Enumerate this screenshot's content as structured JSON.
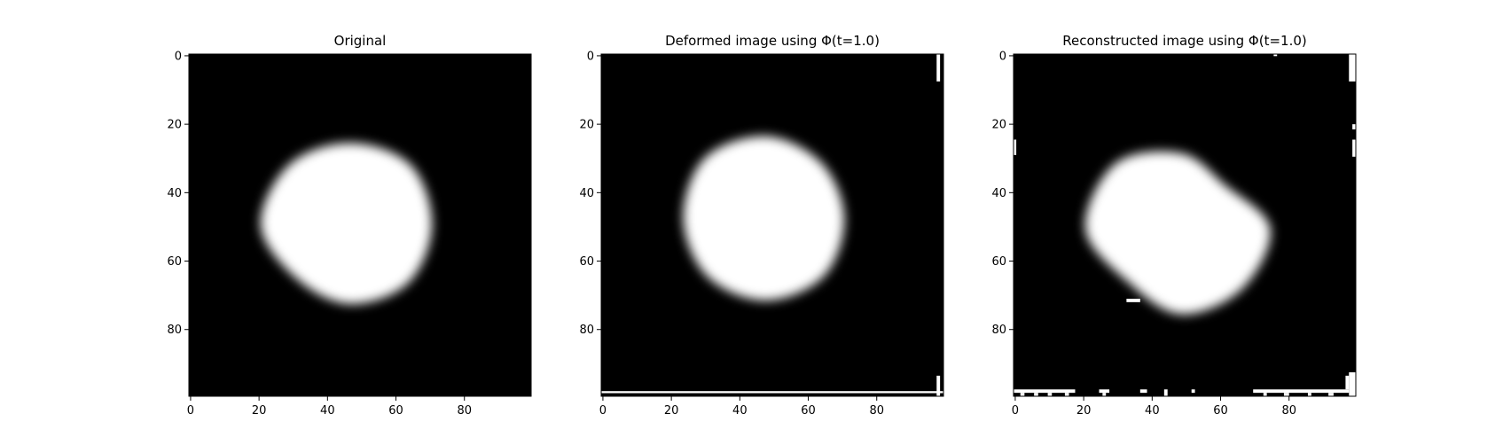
{
  "figure": {
    "background": "#ffffff"
  },
  "chart_data": [
    {
      "type": "heatmap",
      "title": "Original",
      "xlabel": "",
      "ylabel": "",
      "xlim": [
        0,
        100
      ],
      "ylim": [
        100,
        0
      ],
      "xticks": [
        0,
        20,
        40,
        60,
        80
      ],
      "yticks": [
        0,
        20,
        40,
        60,
        80
      ],
      "colormap": [
        "#000000",
        "#ffffff"
      ],
      "blob": {
        "cx": 47,
        "cy": 50,
        "radii": [
          24,
          25,
          24,
          24,
          23,
          22,
          26,
          25
        ]
      },
      "artifacts": []
    },
    {
      "type": "heatmap",
      "title": "Deformed image using Φ(t=1.0)",
      "xlabel": "",
      "ylabel": "",
      "xlim": [
        0,
        100
      ],
      "ylim": [
        100,
        0
      ],
      "xticks": [
        0,
        20,
        40,
        60,
        80
      ],
      "yticks": [
        0,
        20,
        40,
        60,
        80
      ],
      "colormap": [
        "#000000",
        "#ffffff"
      ],
      "blob": {
        "cx": 48,
        "cy": 48,
        "radii": [
          24,
          23,
          23,
          24,
          24,
          24,
          24,
          25
        ]
      },
      "artifacts": [
        {
          "x": 98,
          "y": 0,
          "w": 1,
          "h": 8
        },
        {
          "x": 98,
          "y": 94,
          "w": 1,
          "h": 6
        },
        {
          "x": 0,
          "y": 98.5,
          "w": 100,
          "h": 0.6
        }
      ]
    },
    {
      "type": "heatmap",
      "title": "Reconstructed image using Φ(t=1.0)",
      "xlabel": "",
      "ylabel": "",
      "xlim": [
        0,
        100
      ],
      "ylim": [
        100,
        0
      ],
      "xticks": [
        0,
        20,
        40,
        60,
        80
      ],
      "yticks": [
        0,
        20,
        40,
        60,
        80
      ],
      "colormap": [
        "#000000",
        "#ffffff"
      ],
      "blob": {
        "cx": 49,
        "cy": 51,
        "radii": [
          22,
          18,
          26,
          25,
          25,
          22,
          28,
          27
        ]
      },
      "artifacts": [
        {
          "x": 98,
          "y": 0,
          "w": 2,
          "h": 8
        },
        {
          "x": 76,
          "y": 0,
          "w": 1,
          "h": 0.6
        },
        {
          "x": 99,
          "y": 20.5,
          "w": 1,
          "h": 1.5
        },
        {
          "x": 99,
          "y": 25,
          "w": 1,
          "h": 5
        },
        {
          "x": 0,
          "y": 25,
          "w": 0.8,
          "h": 4.5
        },
        {
          "x": 0,
          "y": 98,
          "w": 18,
          "h": 1
        },
        {
          "x": 2,
          "y": 99,
          "w": 1.2,
          "h": 1
        },
        {
          "x": 6,
          "y": 99,
          "w": 1.2,
          "h": 1
        },
        {
          "x": 10,
          "y": 99,
          "w": 1.2,
          "h": 1
        },
        {
          "x": 15,
          "y": 99,
          "w": 1.2,
          "h": 1
        },
        {
          "x": 25,
          "y": 98,
          "w": 3,
          "h": 1
        },
        {
          "x": 26,
          "y": 99,
          "w": 1,
          "h": 1
        },
        {
          "x": 37,
          "y": 98,
          "w": 2,
          "h": 1
        },
        {
          "x": 44,
          "y": 98,
          "w": 1,
          "h": 2
        },
        {
          "x": 52,
          "y": 98,
          "w": 1,
          "h": 1
        },
        {
          "x": 70,
          "y": 98,
          "w": 28,
          "h": 1
        },
        {
          "x": 73,
          "y": 99,
          "w": 1,
          "h": 1
        },
        {
          "x": 79,
          "y": 99,
          "w": 1.5,
          "h": 1
        },
        {
          "x": 86,
          "y": 99,
          "w": 1,
          "h": 1
        },
        {
          "x": 92,
          "y": 99,
          "w": 1.5,
          "h": 1
        },
        {
          "x": 97,
          "y": 94,
          "w": 1,
          "h": 4
        },
        {
          "x": 98,
          "y": 93,
          "w": 2,
          "h": 7
        },
        {
          "x": 33,
          "y": 71.5,
          "w": 4,
          "h": 1
        }
      ]
    }
  ]
}
